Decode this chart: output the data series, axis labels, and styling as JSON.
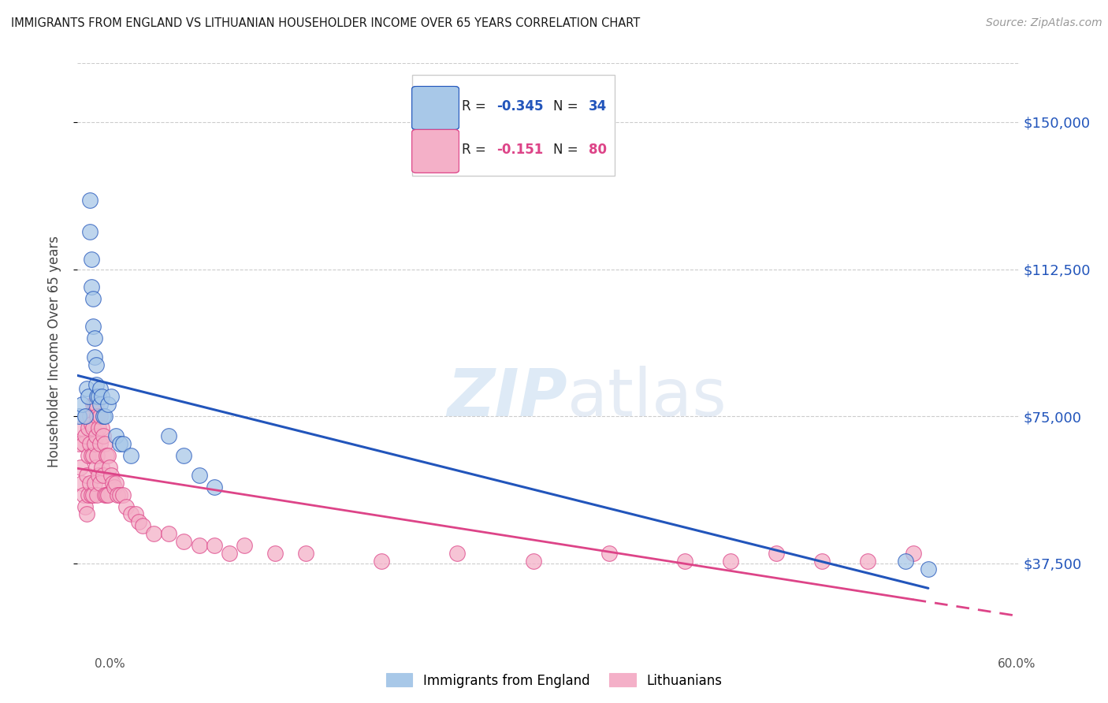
{
  "title": "IMMIGRANTS FROM ENGLAND VS LITHUANIAN HOUSEHOLDER INCOME OVER 65 YEARS CORRELATION CHART",
  "source": "Source: ZipAtlas.com",
  "ylabel": "Householder Income Over 65 years",
  "ytick_labels": [
    "$37,500",
    "$75,000",
    "$112,500",
    "$150,000"
  ],
  "ytick_values": [
    37500,
    75000,
    112500,
    150000
  ],
  "ylim": [
    18000,
    165000
  ],
  "xlim": [
    0.0,
    0.62
  ],
  "legend_entry1_r": "R = -0.345",
  "legend_entry1_n": "N = 34",
  "legend_entry2_r": "R =  -0.151",
  "legend_entry2_n": "N = 80",
  "watermark_zip": "ZIP",
  "watermark_atlas": "atlas",
  "blue_scatter_color": "#a8c8e8",
  "pink_scatter_color": "#f4b0c8",
  "blue_line_color": "#2255bb",
  "pink_line_color": "#dd4488",
  "england_x": [
    0.001,
    0.003,
    0.005,
    0.006,
    0.007,
    0.008,
    0.008,
    0.009,
    0.009,
    0.01,
    0.01,
    0.011,
    0.011,
    0.012,
    0.012,
    0.013,
    0.014,
    0.015,
    0.015,
    0.016,
    0.017,
    0.018,
    0.02,
    0.022,
    0.025,
    0.028,
    0.03,
    0.035,
    0.06,
    0.07,
    0.08,
    0.09,
    0.545,
    0.56
  ],
  "england_y": [
    75000,
    78000,
    75000,
    82000,
    80000,
    130000,
    122000,
    115000,
    108000,
    105000,
    98000,
    95000,
    90000,
    88000,
    83000,
    80000,
    80000,
    82000,
    78000,
    80000,
    75000,
    75000,
    78000,
    80000,
    70000,
    68000,
    68000,
    65000,
    70000,
    65000,
    60000,
    57000,
    38000,
    36000
  ],
  "lithuanian_x": [
    0.001,
    0.002,
    0.003,
    0.003,
    0.004,
    0.004,
    0.005,
    0.005,
    0.006,
    0.006,
    0.006,
    0.007,
    0.007,
    0.007,
    0.008,
    0.008,
    0.008,
    0.009,
    0.009,
    0.009,
    0.01,
    0.01,
    0.01,
    0.01,
    0.011,
    0.011,
    0.011,
    0.012,
    0.012,
    0.012,
    0.013,
    0.013,
    0.013,
    0.014,
    0.014,
    0.015,
    0.015,
    0.015,
    0.016,
    0.016,
    0.017,
    0.017,
    0.018,
    0.018,
    0.019,
    0.019,
    0.02,
    0.02,
    0.021,
    0.022,
    0.023,
    0.024,
    0.025,
    0.026,
    0.028,
    0.03,
    0.032,
    0.035,
    0.038,
    0.04,
    0.043,
    0.05,
    0.06,
    0.07,
    0.08,
    0.09,
    0.1,
    0.11,
    0.13,
    0.15,
    0.2,
    0.25,
    0.3,
    0.35,
    0.4,
    0.43,
    0.46,
    0.49,
    0.52,
    0.55
  ],
  "lithuanian_y": [
    68000,
    62000,
    72000,
    58000,
    68000,
    55000,
    70000,
    52000,
    75000,
    60000,
    50000,
    72000,
    65000,
    55000,
    75000,
    68000,
    58000,
    73000,
    65000,
    55000,
    78000,
    72000,
    65000,
    55000,
    78000,
    68000,
    58000,
    78000,
    70000,
    62000,
    75000,
    65000,
    55000,
    72000,
    60000,
    75000,
    68000,
    58000,
    72000,
    62000,
    70000,
    60000,
    68000,
    55000,
    65000,
    55000,
    65000,
    55000,
    62000,
    60000,
    58000,
    57000,
    58000,
    55000,
    55000,
    55000,
    52000,
    50000,
    50000,
    48000,
    47000,
    45000,
    45000,
    43000,
    42000,
    42000,
    40000,
    42000,
    40000,
    40000,
    38000,
    40000,
    38000,
    40000,
    38000,
    38000,
    40000,
    38000,
    38000,
    40000
  ],
  "grid_color": "#cccccc",
  "bottom_legend_label1": "Immigrants from England",
  "bottom_legend_label2": "Lithuanians"
}
